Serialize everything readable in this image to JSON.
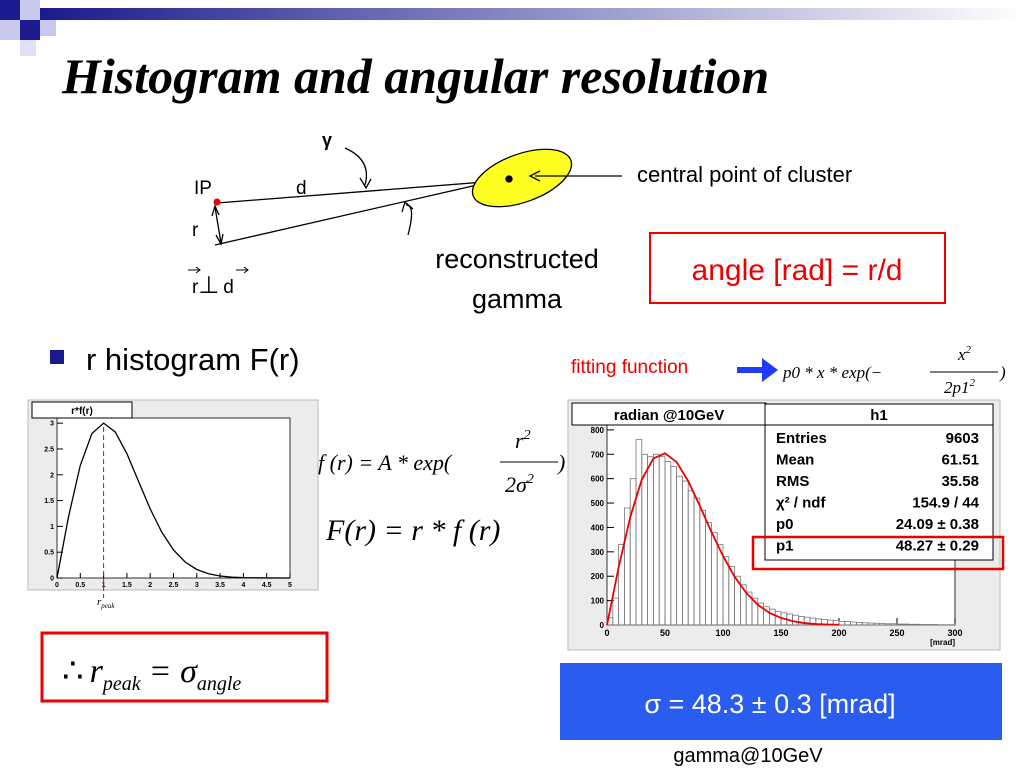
{
  "title": "Histogram and angular resolution",
  "diagram": {
    "gamma": "γ",
    "ip": "IP",
    "d": "d",
    "r": "r",
    "perp": {
      "r": "r",
      "symbol": "⊥",
      "d": "d"
    },
    "cluster_label": "central point of cluster",
    "reconstructed": [
      "reconstructed",
      "gamma"
    ],
    "angle_box": "angle [rad] = r/d"
  },
  "bullet": "r histogram F(r)",
  "fit": {
    "label": "fitting function",
    "formula": {
      "lhs": "p0 * x * exp(−",
      "num": "x",
      "num_sup": "2",
      "den": "2p1",
      "den_sup": "2",
      "close": ")"
    }
  },
  "formulas": {
    "f": {
      "lhs": "f (r) = A * exp(",
      "num": "r",
      "num_sup": "2",
      "den": "2σ",
      "den_sup": "2",
      "close": ")"
    },
    "F": "F(r) = r * f (r)",
    "result": {
      "therefore": "∴",
      "r": "r",
      "r_sub": "peak",
      "eq": "= σ",
      "sigma_sub": "angle"
    }
  },
  "left_plot": {
    "title": "r*f(r)",
    "x": [
      0,
      0.25,
      0.5,
      0.75,
      1,
      1.25,
      1.5,
      1.75,
      2,
      2.25,
      2.5,
      2.75,
      3,
      3.25,
      3.5,
      3.75,
      4,
      4.5,
      5
    ],
    "values": [
      0,
      1.198,
      2.182,
      2.8,
      3.0,
      2.83,
      2.409,
      1.872,
      1.339,
      0.886,
      0.543,
      0.31,
      0.165,
      0.082,
      0.038,
      0.016,
      0.0066,
      0.0009,
      0
    ],
    "peak_x": 1,
    "peak_label": {
      "r": "r",
      "sub": "peak"
    },
    "xlim": [
      0,
      5
    ],
    "ylim": [
      0,
      3.1
    ],
    "xticks": [
      0,
      0.5,
      1,
      1.5,
      2,
      2.5,
      3,
      3.5,
      4,
      4.5,
      5
    ],
    "yticks": [
      0,
      0.5,
      1,
      1.5,
      2,
      2.5,
      3
    ]
  },
  "right_plot": {
    "title": "radian @10GeV",
    "xlabel": "[mrad]",
    "bins": [
      0,
      5,
      10,
      15,
      20,
      25,
      30,
      35,
      40,
      45,
      50,
      55,
      60,
      65,
      70,
      75,
      80,
      85,
      90,
      95,
      100,
      105,
      110,
      115,
      120,
      125,
      130,
      135,
      140,
      145,
      150,
      155,
      160,
      165,
      170,
      175,
      180,
      185,
      190,
      195,
      200,
      205,
      210,
      215,
      220,
      225,
      230,
      235,
      240,
      245,
      250,
      255,
      260,
      265,
      270,
      275,
      280,
      285,
      290,
      295,
      300
    ],
    "counts": [
      30,
      110,
      330,
      480,
      600,
      760,
      700,
      690,
      700,
      690,
      670,
      650,
      610,
      590,
      550,
      520,
      470,
      420,
      380,
      330,
      280,
      240,
      200,
      165,
      135,
      110,
      90,
      75,
      65,
      55,
      50,
      45,
      40,
      35,
      32,
      28,
      25,
      22,
      20,
      18,
      15,
      14,
      12,
      10,
      9,
      8,
      7,
      6,
      5,
      5,
      4,
      4,
      3,
      3,
      2,
      2,
      2,
      1,
      1,
      1
    ],
    "fit_x": [
      0,
      10,
      20,
      30,
      40,
      50,
      60,
      70,
      80,
      90,
      100,
      110,
      120,
      130,
      140,
      150,
      160,
      170,
      180,
      190,
      200
    ],
    "fit_values": [
      0,
      236,
      442,
      596,
      683,
      704,
      668,
      590,
      489,
      382,
      283,
      198,
      132,
      83,
      50,
      29,
      16,
      8,
      4,
      2,
      0.9
    ],
    "xlim": [
      0,
      300
    ],
    "ylim": [
      0,
      820
    ],
    "xticks": [
      0,
      50,
      100,
      150,
      200,
      250,
      300
    ],
    "yticks": [
      0,
      100,
      200,
      300,
      400,
      500,
      600,
      700,
      800
    ],
    "stats": {
      "name": "h1",
      "rows": [
        [
          "Entries",
          9603
        ],
        [
          "Mean",
          61.51
        ],
        [
          "RMS",
          35.58
        ],
        [
          "χ² / ndf",
          "154.9 / 44"
        ],
        [
          "p0",
          "24.09 ± 0.38"
        ],
        [
          "p1",
          "48.27 ± 0.29"
        ]
      ]
    }
  },
  "result_box": "σ = 48.3 ± 0.3 [mrad]",
  "caption": "gamma@10GeV"
}
